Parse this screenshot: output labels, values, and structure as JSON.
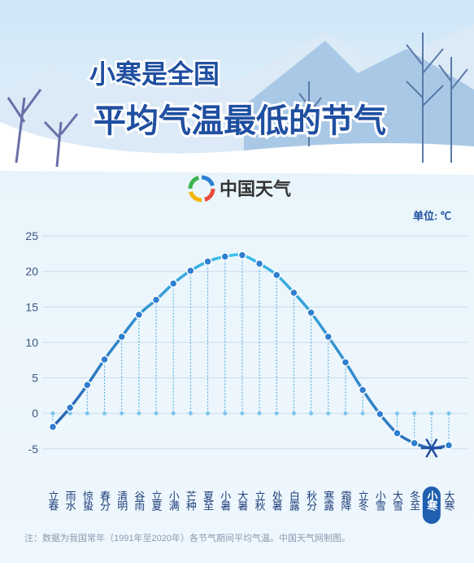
{
  "title_lines": [
    "小寒是全国",
    "平均气温最低的节气"
  ],
  "logo": "中国天气",
  "unit": "单位: ℃",
  "note": "注：数据为我国常年（1991年至2020年）各节气期间平均气温。中国天气网制图。",
  "chart_data": {
    "type": "line",
    "categories": [
      "立春",
      "雨水",
      "惊蛰",
      "春分",
      "清明",
      "谷雨",
      "立夏",
      "小满",
      "芒种",
      "夏至",
      "小暑",
      "大暑",
      "立秋",
      "处暑",
      "白露",
      "秋分",
      "寒露",
      "霜降",
      "立冬",
      "小雪",
      "大雪",
      "冬至",
      "小寒",
      "大寒"
    ],
    "values": [
      -1.9,
      0.8,
      4.0,
      7.6,
      10.8,
      13.9,
      16.0,
      18.3,
      20.1,
      21.4,
      22.1,
      22.3,
      21.1,
      19.5,
      17.0,
      14.2,
      10.8,
      7.2,
      3.3,
      -0.1,
      -2.8,
      -4.2,
      -4.9,
      -4.5
    ],
    "color": "#2f7fd0",
    "highlight_index": 22,
    "ylim": [
      -9.5,
      26.5
    ],
    "yticks": [
      -5,
      0,
      5,
      10,
      15,
      20,
      25
    ],
    "grid": true
  }
}
